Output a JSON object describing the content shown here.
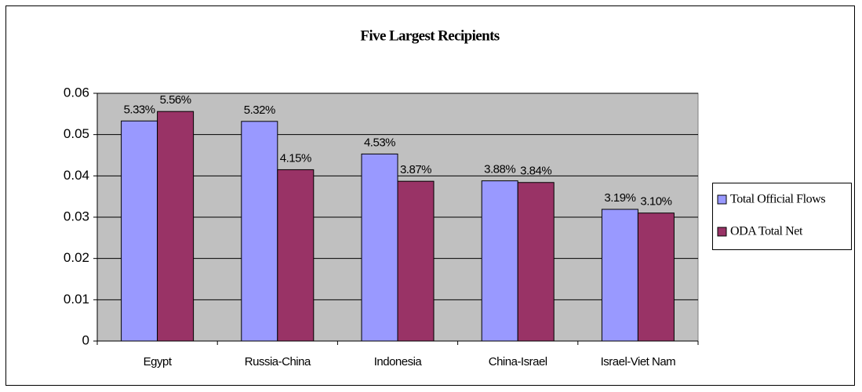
{
  "chart_data": {
    "type": "bar",
    "title": "Five Largest Recipients",
    "categories": [
      "Egypt",
      "Russia-China",
      "Indonesia",
      "China-Israel",
      "Israel-Viet Nam"
    ],
    "series": [
      {
        "name": "Total Official Flows",
        "color": "#9999ff",
        "values": [
          0.0533,
          0.0532,
          0.0453,
          0.0388,
          0.0319
        ],
        "value_labels": [
          "5.33%",
          "5.32%",
          "4.53%",
          "3.88%",
          "3.19%"
        ]
      },
      {
        "name": "ODA Total Net",
        "color": "#993366",
        "values": [
          0.0556,
          0.0415,
          0.0387,
          0.0384,
          0.031
        ],
        "value_labels": [
          "5.56%",
          "4.15%",
          "3.87%",
          "3.84%",
          "3.10%"
        ]
      }
    ],
    "ylim": [
      0,
      0.06
    ],
    "yticks": [
      0,
      0.01,
      0.02,
      0.03,
      0.04,
      0.05,
      0.06
    ],
    "grid": true,
    "legend": "right"
  }
}
